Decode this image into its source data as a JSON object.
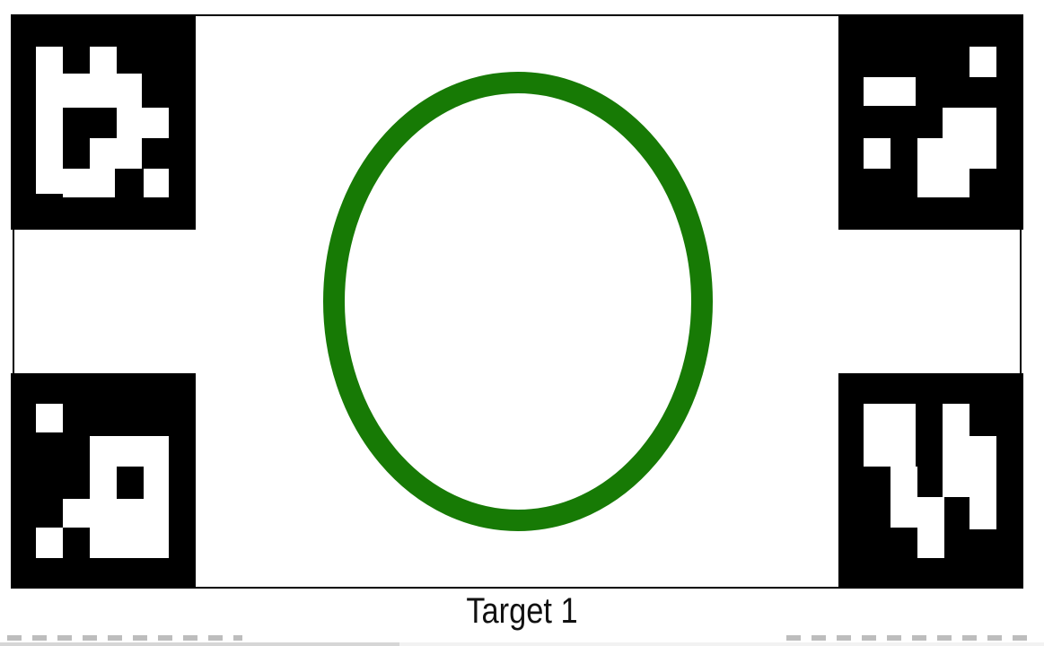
{
  "caption": "Target 1",
  "ring_color": "#177a05",
  "markers": [
    "top-left",
    "top-right",
    "bottom-left",
    "bottom-right"
  ]
}
